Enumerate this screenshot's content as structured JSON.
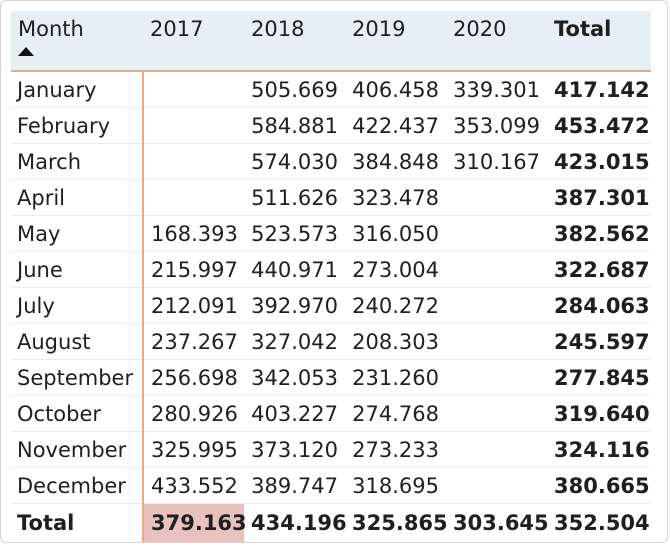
{
  "header": {
    "month": "Month",
    "years": [
      "2017",
      "2018",
      "2019",
      "2020"
    ],
    "total": "Total",
    "sort_icon": "sort-ascending-icon"
  },
  "rows": [
    {
      "month": "January",
      "values": [
        "",
        "505.669",
        "406.458",
        "339.301"
      ],
      "total": "417.142"
    },
    {
      "month": "February",
      "values": [
        "",
        "584.881",
        "422.437",
        "353.099"
      ],
      "total": "453.472"
    },
    {
      "month": "March",
      "values": [
        "",
        "574.030",
        "384.848",
        "310.167"
      ],
      "total": "423.015"
    },
    {
      "month": "April",
      "values": [
        "",
        "511.626",
        "323.478",
        ""
      ],
      "total": "387.301"
    },
    {
      "month": "May",
      "values": [
        "168.393",
        "523.573",
        "316.050",
        ""
      ],
      "total": "382.562"
    },
    {
      "month": "June",
      "values": [
        "215.997",
        "440.971",
        "273.004",
        ""
      ],
      "total": "322.687"
    },
    {
      "month": "July",
      "values": [
        "212.091",
        "392.970",
        "240.272",
        ""
      ],
      "total": "284.063"
    },
    {
      "month": "August",
      "values": [
        "237.267",
        "327.042",
        "208.303",
        ""
      ],
      "total": "245.597"
    },
    {
      "month": "September",
      "values": [
        "256.698",
        "342.053",
        "231.260",
        ""
      ],
      "total": "277.845"
    },
    {
      "month": "October",
      "values": [
        "280.926",
        "403.227",
        "274.768",
        ""
      ],
      "total": "319.640"
    },
    {
      "month": "November",
      "values": [
        "325.995",
        "373.120",
        "273.233",
        ""
      ],
      "total": "324.116"
    },
    {
      "month": "December",
      "values": [
        "433.552",
        "389.747",
        "318.695",
        ""
      ],
      "total": "380.665"
    }
  ],
  "footer": {
    "label": "Total",
    "values": [
      "379.163",
      "434.196",
      "325.865",
      "303.645"
    ],
    "total": "352.504"
  },
  "colors": {
    "header_bg": "#e6eef6",
    "accent_line": "#f0a87a",
    "highlight": "#e9c1bf"
  }
}
